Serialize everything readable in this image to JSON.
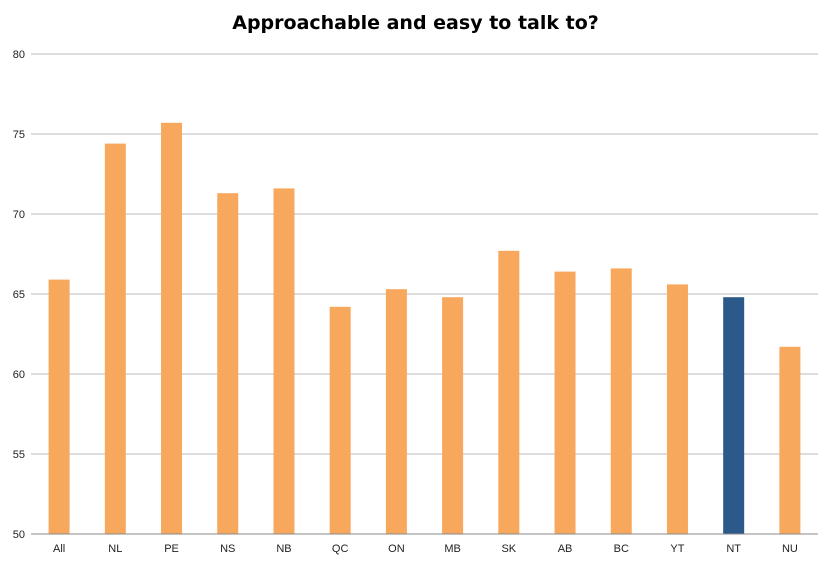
{
  "chart_data": {
    "type": "bar",
    "title": "Approachable and easy to talk to?",
    "xlabel": "",
    "ylabel": "",
    "categories": [
      "All",
      "NL",
      "PE",
      "NS",
      "NB",
      "QC",
      "ON",
      "MB",
      "SK",
      "AB",
      "BC",
      "YT",
      "NT",
      "NU"
    ],
    "values": [
      65.9,
      74.4,
      75.7,
      71.3,
      71.6,
      64.2,
      65.3,
      64.8,
      67.7,
      66.4,
      66.6,
      65.6,
      64.8,
      61.7
    ],
    "ylim": [
      50,
      80
    ],
    "yticks": [
      50,
      55,
      60,
      65,
      70,
      75,
      80
    ],
    "grid": true,
    "legend": "none",
    "colors": {
      "default_bar": "#F8A85C",
      "highlight_bar": "#2B5A8A",
      "gridline": "#BBBBBB",
      "axis": "#888888"
    },
    "highlight_category": "NT"
  }
}
